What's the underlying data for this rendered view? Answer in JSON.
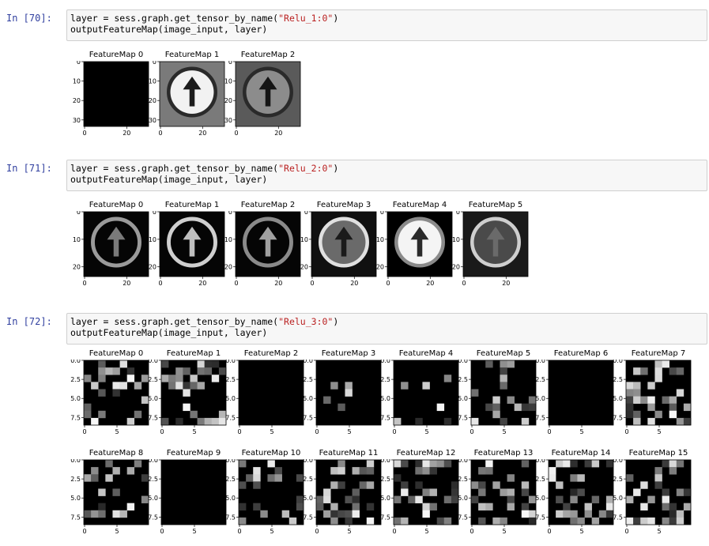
{
  "cells": [
    {
      "prompt": "In [70]:",
      "code_line1_prefix": "layer = sess.graph.get_tensor_by_name(",
      "code_line1_string": "\"Relu_1:0\"",
      "code_line1_suffix": ")",
      "code_line2": "outputFeatureMap(image_input, layer)",
      "figure": {
        "titles": [
          "FeatureMap 0",
          "FeatureMap 1",
          "FeatureMap 2"
        ],
        "y_ticks": [
          "0",
          "10",
          "20",
          "30"
        ],
        "x_ticks": [
          "0",
          "20"
        ]
      }
    },
    {
      "prompt": "In [71]:",
      "code_line1_prefix": "layer = sess.graph.get_tensor_by_name(",
      "code_line1_string": "\"Relu_2:0\"",
      "code_line1_suffix": ")",
      "code_line2": "outputFeatureMap(image_input, layer)",
      "figure": {
        "titles": [
          "FeatureMap 0",
          "FeatureMap 1",
          "FeatureMap 2",
          "FeatureMap 3",
          "FeatureMap 4",
          "FeatureMap 5"
        ],
        "y_ticks": [
          "0",
          "10",
          "20"
        ],
        "x_ticks": [
          "0",
          "20"
        ]
      }
    },
    {
      "prompt": "In [72]:",
      "code_line1_prefix": "layer = sess.graph.get_tensor_by_name(",
      "code_line1_string": "\"Relu_3:0\"",
      "code_line1_suffix": ")",
      "code_line2": "outputFeatureMap(image_input, layer)",
      "figure": {
        "titles_row1": [
          "FeatureMap 0",
          "FeatureMap 1",
          "FeatureMap 2",
          "FeatureMap 3",
          "FeatureMap 4",
          "FeatureMap 5",
          "FeatureMap 6",
          "FeatureMap 7"
        ],
        "titles_row2": [
          "FeatureMap 8",
          "FeatureMap 9",
          "FeatureMap 10",
          "FeatureMap 11",
          "FeatureMap 12",
          "FeatureMap 13",
          "FeatureMap 14",
          "FeatureMap 15"
        ],
        "y_ticks": [
          "0.0",
          "2.5",
          "5.0",
          "7.5"
        ],
        "x_ticks": [
          "0",
          "5"
        ]
      }
    }
  ],
  "colors": {
    "prompt": "#303f9f",
    "string": "#ba2121",
    "input_bg": "#f7f7f7",
    "input_border": "#cfcfcf"
  }
}
